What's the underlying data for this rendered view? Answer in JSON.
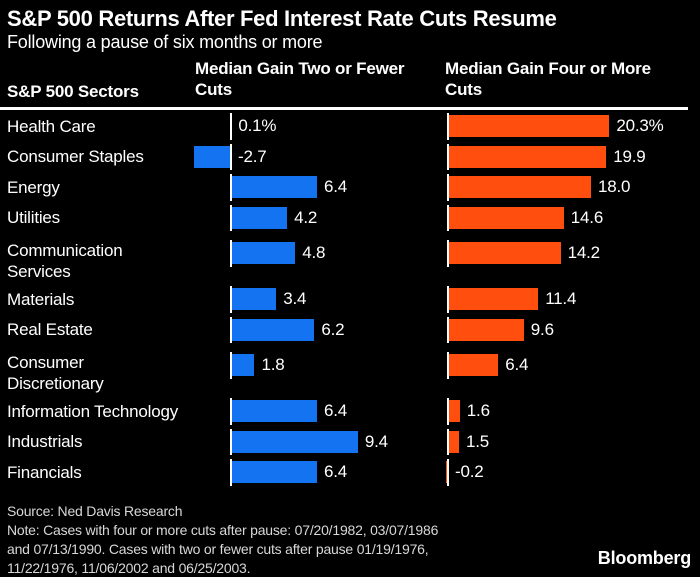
{
  "header": {
    "sectors_label": "S&P 500 Sectors",
    "col1": "Median Gain Two or Fewer\nCuts",
    "col2": "Median Gain Four or More\nCuts"
  },
  "chart_data": {
    "type": "bar",
    "orientation": "horizontal",
    "title": "S&P 500 Returns After Fed Interest Rate Cuts Resume",
    "subtitle": "Following a pause of six months or more",
    "unit": "%",
    "categories": [
      "Health Care",
      "Consumer Staples",
      "Energy",
      "Utilities",
      "Communication\nServices",
      "Materials",
      "Real Estate",
      "Consumer\nDiscretionary",
      "Information Technology",
      "Industrials",
      "Financials"
    ],
    "series": [
      {
        "name": "Median Gain Two or Fewer Cuts",
        "color": "#1473f0",
        "values": [
          0.1,
          -2.7,
          6.4,
          4.2,
          4.8,
          3.4,
          6.2,
          1.8,
          6.4,
          9.4,
          6.4
        ],
        "value_labels": [
          "0.1%",
          "-2.7",
          "6.4",
          "4.2",
          "4.8",
          "3.4",
          "6.2",
          "1.8",
          "6.4",
          "9.4",
          "6.4"
        ]
      },
      {
        "name": "Median Gain Four or More Cuts",
        "color": "#ff4e0d",
        "values": [
          20.3,
          19.9,
          18.0,
          14.6,
          14.2,
          11.4,
          9.6,
          6.4,
          1.6,
          1.5,
          -0.2
        ],
        "value_labels": [
          "20.3%",
          "19.9",
          "18.0",
          "14.6",
          "14.2",
          "11.4",
          "9.6",
          "6.4",
          "1.6",
          "1.5",
          "-0.2"
        ]
      }
    ],
    "layout": {
      "panels": 2,
      "baseline": 0,
      "grid": false,
      "value_labels": true,
      "legend_position": "column-headers"
    }
  },
  "footer": {
    "source": "Source: Ned Davis Research",
    "note": "Note: Cases with four or more cuts after pause: 07/20/1982, 03/07/1986\nand 07/13/1990. Cases with two or fewer cuts after pause 01/19/1976,\n11/22/1976, 11/06/2002 and 06/25/2003.",
    "logo": "Bloomberg"
  },
  "colors": {
    "background": "#000000",
    "text": "#ffffff",
    "footer_text": "#d8d8d8",
    "blue": "#1473f0",
    "orange": "#ff4e0d",
    "axis": "#ffffff"
  }
}
